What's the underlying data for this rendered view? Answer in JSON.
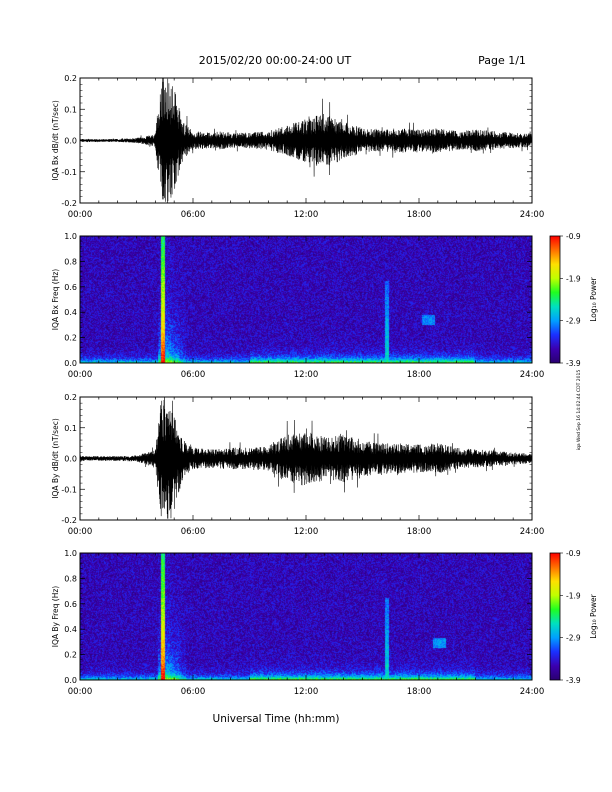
{
  "header": {
    "title": "2015/02/20  00:00-24:00 UT",
    "page": "Page 1/1"
  },
  "side_stamp": "iqa Wed Sep 16 14:02:44 CDT 2015",
  "footer": {
    "xlabel": "Universal Time (hh:mm)"
  },
  "chart_data": [
    {
      "type": "line",
      "title": "",
      "ylabel": "IQA Bx dB/dt (nT/sec)",
      "xlabel": "",
      "xlim": [
        0,
        24
      ],
      "ylim": [
        -0.2,
        0.2
      ],
      "x_tick_labels": [
        "00:00",
        "06:00",
        "12:00",
        "18:00",
        "24:00"
      ],
      "y_ticks": [
        -0.2,
        -0.1,
        0.0,
        0.1,
        0.2
      ],
      "y_tick_labels": [
        "-0.2",
        "-0.1",
        "0.0",
        "0.1",
        "0.2"
      ],
      "grid": false,
      "x": [
        0,
        1,
        2,
        3,
        4,
        4.3,
        4.6,
        4.9,
        5.2,
        5.5,
        6,
        7,
        7.5,
        8,
        9,
        10,
        11,
        12,
        13,
        14,
        15,
        16,
        17,
        18,
        19,
        20,
        21,
        22,
        23,
        24
      ],
      "envelope": [
        0.005,
        0.005,
        0.005,
        0.008,
        0.02,
        0.2,
        0.2,
        0.2,
        0.12,
        0.06,
        0.03,
        0.025,
        0.03,
        0.025,
        0.025,
        0.03,
        0.05,
        0.07,
        0.09,
        0.06,
        0.04,
        0.035,
        0.04,
        0.035,
        0.04,
        0.03,
        0.035,
        0.03,
        0.025,
        0.02
      ],
      "series": [
        {
          "name": "",
          "color": "#000000"
        }
      ]
    },
    {
      "type": "heatmap",
      "title": "",
      "ylabel": "IQA Bx Freq (Hz)",
      "xlabel": "",
      "xlim": [
        0,
        24
      ],
      "ylim": [
        0,
        1.0
      ],
      "x_tick_labels": [
        "00:00",
        "06:00",
        "12:00",
        "18:00",
        "24:00"
      ],
      "y_ticks": [
        0.0,
        0.2,
        0.4,
        0.6,
        0.8,
        1.0
      ],
      "y_tick_labels": [
        "0.0",
        "0.2",
        "0.4",
        "0.6",
        "0.8",
        "1.0"
      ],
      "colorbar": {
        "label": "Log₁₀ Power",
        "range": [
          -3.9,
          -0.9
        ],
        "tick_labels": [
          "-0.9",
          "-1.9",
          "-2.9",
          "-3.9"
        ],
        "colors": [
          "#2a0070",
          "#3b00b0",
          "#1a30ff",
          "#00a0ff",
          "#00e0c0",
          "#20ff20",
          "#c0ff00",
          "#ffe000",
          "#ff7000",
          "#ff0000"
        ]
      },
      "features": [
        {
          "time_hours": 4.4,
          "freq_hz": [
            0.0,
            1.0
          ],
          "log_power": -1.6
        },
        {
          "time_hours": 16.3,
          "freq_hz": [
            0.0,
            0.65
          ],
          "log_power": -2.6
        },
        {
          "time_hours": 18.5,
          "freq_hz": [
            0.3,
            0.38
          ],
          "log_power": -2.7
        }
      ]
    },
    {
      "type": "line",
      "title": "",
      "ylabel": "IQA By dB/dt (nT/sec)",
      "xlabel": "",
      "xlim": [
        0,
        24
      ],
      "ylim": [
        -0.2,
        0.2
      ],
      "x_tick_labels": [
        "00:00",
        "06:00",
        "12:00",
        "18:00",
        "24:00"
      ],
      "y_ticks": [
        -0.2,
        -0.1,
        0.0,
        0.1,
        0.2
      ],
      "y_tick_labels": [
        "-0.2",
        "-0.1",
        "0.0",
        "0.1",
        "0.2"
      ],
      "grid": false,
      "x": [
        0,
        1,
        2,
        3,
        4,
        4.3,
        4.6,
        4.9,
        5.2,
        5.5,
        6,
        7,
        8,
        9,
        10,
        11,
        12,
        13,
        14,
        15,
        16,
        17,
        18,
        19,
        20,
        21,
        22,
        23,
        24
      ],
      "envelope": [
        0.008,
        0.008,
        0.008,
        0.01,
        0.03,
        0.2,
        0.2,
        0.2,
        0.12,
        0.06,
        0.035,
        0.03,
        0.035,
        0.035,
        0.04,
        0.08,
        0.09,
        0.07,
        0.08,
        0.06,
        0.05,
        0.05,
        0.045,
        0.05,
        0.035,
        0.03,
        0.025,
        0.02,
        0.015
      ],
      "series": [
        {
          "name": "",
          "color": "#000000"
        }
      ]
    },
    {
      "type": "heatmap",
      "title": "",
      "ylabel": "IQA By Freq (Hz)",
      "xlabel": "",
      "xlim": [
        0,
        24
      ],
      "ylim": [
        0,
        1.0
      ],
      "x_tick_labels": [
        "00:00",
        "06:00",
        "12:00",
        "18:00",
        "24:00"
      ],
      "y_ticks": [
        0.0,
        0.2,
        0.4,
        0.6,
        0.8,
        1.0
      ],
      "y_tick_labels": [
        "0.0",
        "0.2",
        "0.4",
        "0.6",
        "0.8",
        "1.0"
      ],
      "colorbar": {
        "label": "Log₁₀ Power",
        "range": [
          -3.9,
          -0.9
        ],
        "tick_labels": [
          "-0.9",
          "-1.9",
          "-2.9",
          "-3.9"
        ],
        "colors": [
          "#2a0070",
          "#3b00b0",
          "#1a30ff",
          "#00a0ff",
          "#00e0c0",
          "#20ff20",
          "#c0ff00",
          "#ffe000",
          "#ff7000",
          "#ff0000"
        ]
      },
      "features": [
        {
          "time_hours": 4.4,
          "freq_hz": [
            0.0,
            1.0
          ],
          "log_power": -1.6
        },
        {
          "time_hours": 16.3,
          "freq_hz": [
            0.0,
            0.65
          ],
          "log_power": -2.6
        },
        {
          "time_hours": 19.1,
          "freq_hz": [
            0.25,
            0.33
          ],
          "log_power": -2.7
        }
      ]
    }
  ]
}
